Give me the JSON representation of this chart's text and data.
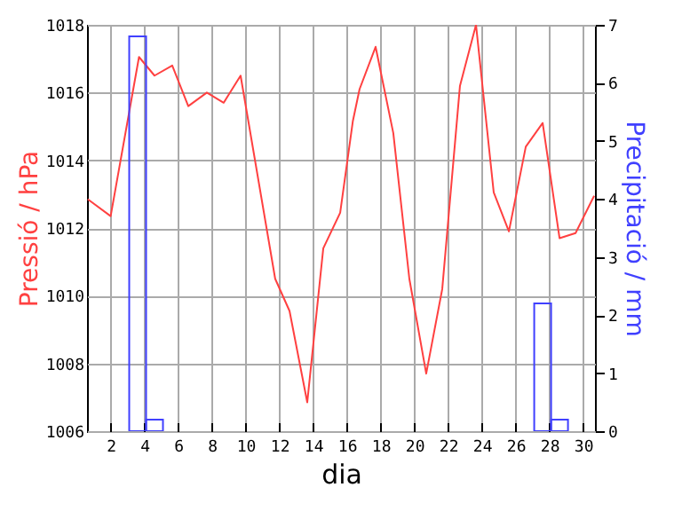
{
  "chart_data": {
    "type": "line",
    "xlabel": "dia",
    "ylabel": "Pressió / hPa",
    "y2label": "Precipitació / mm",
    "xlim": [
      0.6,
      30.7
    ],
    "xticks": [
      2,
      4,
      6,
      8,
      10,
      12,
      14,
      16,
      18,
      20,
      22,
      24,
      26,
      28,
      30
    ],
    "ylim": [
      1006,
      1018
    ],
    "yticks": [
      1006,
      1008,
      1010,
      1012,
      1014,
      1016,
      1018
    ],
    "y2lim": [
      0,
      7
    ],
    "y2ticks": [
      0,
      1,
      2,
      3,
      4,
      5,
      6,
      7
    ],
    "grid": true,
    "marker": "none",
    "line_style": "solid",
    "series": [
      {
        "color": "#ff4040",
        "x": [
          0.64,
          2,
          3.68,
          4.6,
          5.65,
          6.6,
          7.7,
          8.7,
          9.7,
          11.75,
          12.6,
          13.65,
          14.6,
          15.6,
          16.35,
          16.75,
          17.7,
          18.75,
          19.7,
          20.7,
          21.65,
          22.7,
          23.65,
          24.7,
          25.6,
          26.6,
          27.6,
          28.6,
          29.55,
          30.65
        ],
        "values": [
          1012.85,
          1012.35,
          1017.05,
          1016.5,
          1016.8,
          1015.6,
          1016.0,
          1015.7,
          1016.5,
          1010.5,
          1009.55,
          1006.85,
          1011.4,
          1012.45,
          1015.15,
          1016.1,
          1017.35,
          1014.8,
          1010.5,
          1007.7,
          1010.2,
          1016.2,
          1018.0,
          1013.05,
          1011.9,
          1014.4,
          1015.1,
          1011.7,
          1011.85,
          1012.95
        ]
      },
      {
        "type": "bar",
        "axis": "y2",
        "color": "#4040ff",
        "x": [
          3.6,
          4.6,
          27.6,
          28.6
        ],
        "values": [
          6.8,
          0.2,
          2.2,
          0.2
        ]
      }
    ]
  }
}
